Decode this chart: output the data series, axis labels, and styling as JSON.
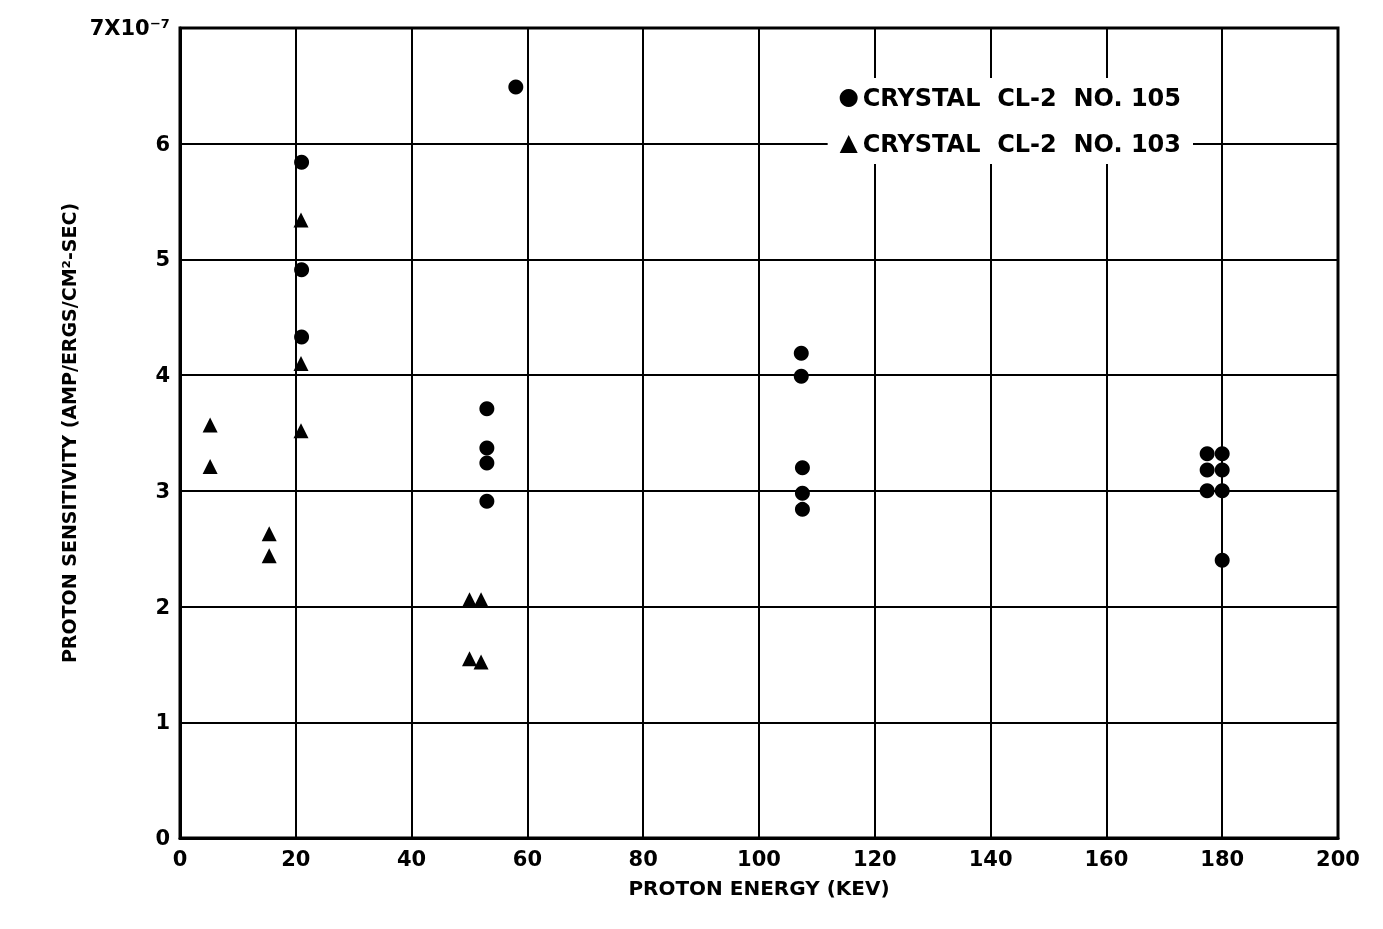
{
  "chart_data": {
    "type": "scatter",
    "xlabel": "PROTON ENERGY (KEV)",
    "ylabel": "PROTON SENSITIVITY (AMP/ERGS/CM²-SEC)",
    "xlim": [
      0,
      200
    ],
    "xticks": [
      0,
      20,
      40,
      60,
      80,
      100,
      120,
      140,
      160,
      180,
      200
    ],
    "ylim": [
      0,
      7
    ],
    "yticks": [
      0,
      1,
      2,
      3,
      4,
      5,
      6,
      {
        "value": 7,
        "label": "7X10⁻⁷"
      }
    ],
    "grid": true,
    "legend": "top right",
    "series": [
      {
        "name": "CRYSTAL  CL-2  NO. 105",
        "color": "#000000",
        "marker": "circle",
        "x": [
          58,
          21,
          21,
          21,
          53,
          53,
          53,
          53,
          107.3,
          107.3,
          107.5,
          107.5,
          107.5,
          177.4,
          180,
          177.4,
          180,
          177.4,
          180,
          180
        ],
        "values": [
          6.49,
          5.84,
          4.91,
          4.33,
          3.71,
          3.37,
          3.24,
          2.91,
          4.19,
          3.99,
          3.2,
          2.98,
          2.84,
          3.32,
          3.32,
          3.18,
          3.18,
          3.0,
          3.0,
          2.4
        ]
      },
      {
        "name": "CRYSTAL  CL-2  NO. 103",
        "color": "#000000",
        "marker": "triangle",
        "x": [
          5.2,
          5.2,
          15.4,
          15.4,
          20.9,
          20.9,
          20.9,
          50,
          52,
          50,
          52
        ],
        "values": [
          3.57,
          3.21,
          2.63,
          2.44,
          5.34,
          4.1,
          3.52,
          2.06,
          2.06,
          1.55,
          1.52
        ]
      }
    ]
  }
}
